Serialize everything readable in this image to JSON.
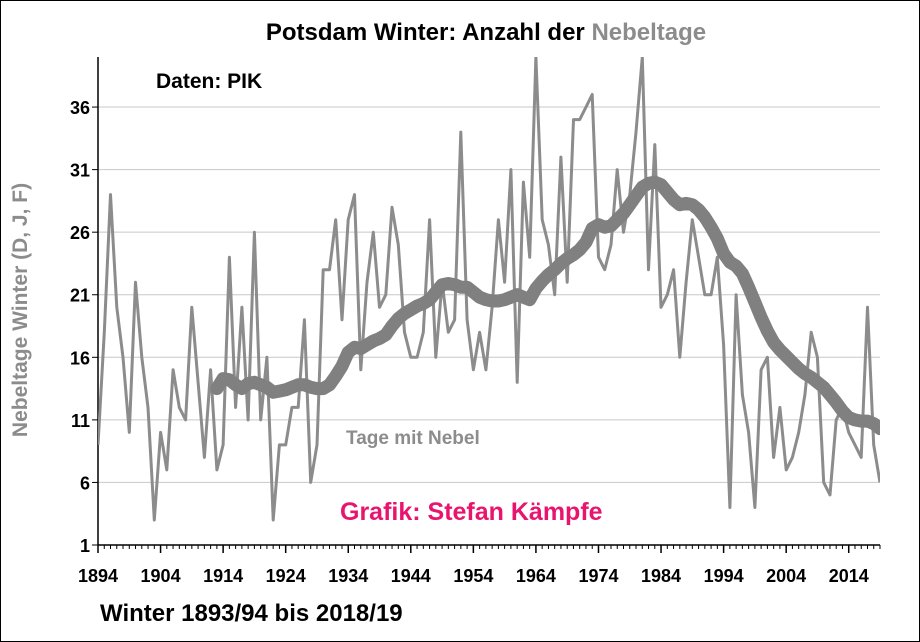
{
  "chart_data": {
    "type": "line",
    "title_part1": "Potsdam Winter: Anzahl der ",
    "title_part2": "Nebeltage",
    "source_note": "Daten: PIK",
    "credit": "Grafik: Stefan Kämpfe",
    "xlabel": "Winter 1893/94 bis 2018/19",
    "ylabel": "Nebeltage Winter (D, J, F)",
    "ylim": [
      1,
      40
    ],
    "xlim": [
      1894,
      2019
    ],
    "yticks": [
      1,
      6,
      11,
      16,
      21,
      26,
      31,
      36
    ],
    "xticks": [
      1894,
      1904,
      1914,
      1924,
      1934,
      1944,
      1954,
      1964,
      1974,
      1984,
      1994,
      2004,
      2014
    ],
    "grid": "horizontal",
    "colors": {
      "series": "#8c8c8c",
      "trend": "#808080",
      "ylabel": "#8c8c8c",
      "title_highlight": "#8c8c8c",
      "credit": "#e8146e"
    },
    "series": [
      {
        "name": "Tage mit Nebel",
        "x": [
          1894,
          1895,
          1896,
          1897,
          1898,
          1899,
          1900,
          1901,
          1902,
          1903,
          1904,
          1905,
          1906,
          1907,
          1908,
          1909,
          1910,
          1911,
          1912,
          1913,
          1914,
          1915,
          1916,
          1917,
          1918,
          1919,
          1920,
          1921,
          1922,
          1923,
          1924,
          1925,
          1926,
          1927,
          1928,
          1929,
          1930,
          1931,
          1932,
          1933,
          1934,
          1935,
          1936,
          1937,
          1938,
          1939,
          1940,
          1941,
          1942,
          1943,
          1944,
          1945,
          1946,
          1947,
          1948,
          1949,
          1950,
          1951,
          1952,
          1953,
          1954,
          1955,
          1956,
          1957,
          1958,
          1959,
          1960,
          1961,
          1962,
          1963,
          1964,
          1965,
          1966,
          1967,
          1968,
          1969,
          1970,
          1971,
          1972,
          1973,
          1974,
          1975,
          1976,
          1977,
          1978,
          1979,
          1980,
          1981,
          1982,
          1983,
          1984,
          1985,
          1986,
          1987,
          1988,
          1989,
          1990,
          1991,
          1992,
          1993,
          1994,
          1995,
          1996,
          1997,
          1998,
          1999,
          2000,
          2001,
          2002,
          2003,
          2004,
          2005,
          2006,
          2007,
          2008,
          2009,
          2010,
          2011,
          2012,
          2013,
          2014,
          2015,
          2016,
          2017,
          2018,
          2019
        ],
        "values": [
          9,
          18,
          29,
          20,
          16,
          10,
          22,
          16,
          12,
          3,
          10,
          7,
          15,
          12,
          11,
          20,
          14,
          8,
          15,
          7,
          9,
          24,
          12,
          20,
          11,
          26,
          11,
          16,
          3,
          9,
          9,
          12,
          12,
          19,
          6,
          9,
          23,
          23,
          27,
          19,
          27,
          29,
          15,
          22,
          26,
          20,
          21,
          28,
          25,
          18,
          16,
          16,
          18,
          27,
          16,
          22,
          18,
          19,
          34,
          19,
          15,
          18,
          15,
          20,
          27,
          22,
          31,
          14,
          30,
          24,
          40,
          27,
          25,
          21,
          32,
          22,
          35,
          35,
          36,
          37,
          24,
          23,
          25,
          31,
          26,
          29,
          34,
          40,
          23,
          33,
          20,
          21,
          23,
          16,
          22,
          27,
          24,
          21,
          21,
          24,
          17,
          4,
          21,
          13,
          10,
          4,
          15,
          16,
          8,
          12,
          7,
          8,
          10,
          13,
          18,
          16,
          6,
          5,
          11,
          12,
          10,
          9,
          8,
          20,
          9,
          6
        ],
        "trend_x": [
          1913,
          1914,
          1915,
          1916,
          1917,
          1918,
          1919,
          1920,
          1921,
          1922,
          1923,
          1924,
          1925,
          1926,
          1927,
          1928,
          1929,
          1930,
          1931,
          1932,
          1933,
          1934,
          1935,
          1936,
          1937,
          1938,
          1939,
          1940,
          1941,
          1942,
          1943,
          1944,
          1945,
          1946,
          1947,
          1948,
          1949,
          1950,
          1951,
          1952,
          1953,
          1954,
          1955,
          1956,
          1957,
          1958,
          1959,
          1960,
          1961,
          1962,
          1963,
          1964,
          1965,
          1966,
          1967,
          1968,
          1969,
          1970,
          1971,
          1972,
          1973,
          1974,
          1975,
          1976,
          1977,
          1978,
          1979,
          1980,
          1981,
          1982,
          1983,
          1984,
          1985,
          1986,
          1987,
          1988,
          1989,
          1990,
          1991,
          1992,
          1993,
          1994,
          1995,
          1996,
          1997,
          1998,
          1999,
          2000,
          2001,
          2002,
          2003,
          2004,
          2005,
          2006,
          2007,
          2008,
          2009,
          2010,
          2011,
          2012,
          2013,
          2014,
          2015,
          2016,
          2017,
          2018,
          2019
        ],
        "trend": [
          13.5,
          14.3,
          14.2,
          13.8,
          13.5,
          13.9,
          14.0,
          13.8,
          13.6,
          13.2,
          13.3,
          13.4,
          13.6,
          13.8,
          13.8,
          13.6,
          13.5,
          13.5,
          13.8,
          14.5,
          15.3,
          16.4,
          16.8,
          16.7,
          17.0,
          17.3,
          17.5,
          17.8,
          18.5,
          19.1,
          19.5,
          19.8,
          20.1,
          20.3,
          20.6,
          21.2,
          21.8,
          21.9,
          21.8,
          21.6,
          21.6,
          21.2,
          20.8,
          20.6,
          20.5,
          20.5,
          20.6,
          20.8,
          21.0,
          20.8,
          20.6,
          21.5,
          22.1,
          22.6,
          23.0,
          23.5,
          23.9,
          24.2,
          24.6,
          25.2,
          26.3,
          26.6,
          26.4,
          26.5,
          27.0,
          27.5,
          28.2,
          28.9,
          29.6,
          29.9,
          30.0,
          29.8,
          29.2,
          28.6,
          28.2,
          28.3,
          28.2,
          27.8,
          27.2,
          26.4,
          25.5,
          24.3,
          23.6,
          23.3,
          22.7,
          21.6,
          20.4,
          19.2,
          18.1,
          17.2,
          16.6,
          16.1,
          15.6,
          15.1,
          14.7,
          14.4,
          14.0,
          13.6,
          13.0,
          12.4,
          11.7,
          11.2,
          11.0,
          10.9,
          10.9,
          10.7,
          10.3
        ]
      }
    ]
  }
}
